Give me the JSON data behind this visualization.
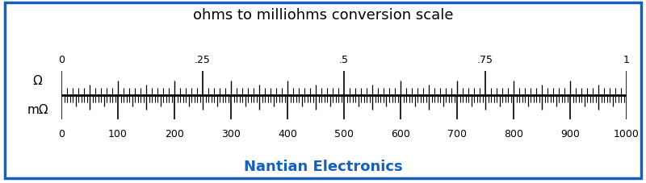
{
  "title": "ohms to milliohms conversion scale",
  "title_fontsize": 13,
  "footer_text": "Nantian Electronics",
  "footer_color": "#1560bd",
  "footer_fontsize": 13,
  "bg_color": "#ffffff",
  "border_color": "#1560bd",
  "top_scale": {
    "label": "Ω",
    "min": 0,
    "max": 1,
    "major_ticks": [
      0,
      0.25,
      0.5,
      0.75,
      1
    ],
    "major_labels": [
      "0",
      ".25",
      ".5",
      ".75",
      "1"
    ],
    "minor_interval": 0.01,
    "medium_every": 5,
    "major_every": 25
  },
  "bottom_scale": {
    "label": "mΩ",
    "min": 0,
    "max": 1000,
    "major_ticks": [
      0,
      100,
      200,
      300,
      400,
      500,
      600,
      700,
      800,
      900,
      1000
    ],
    "major_labels": [
      "0",
      "100",
      "200",
      "300",
      "400",
      "500",
      "600",
      "700",
      "800",
      "900",
      "1000"
    ],
    "minor_interval": 5,
    "medium_every": 2,
    "major_every": 20
  }
}
